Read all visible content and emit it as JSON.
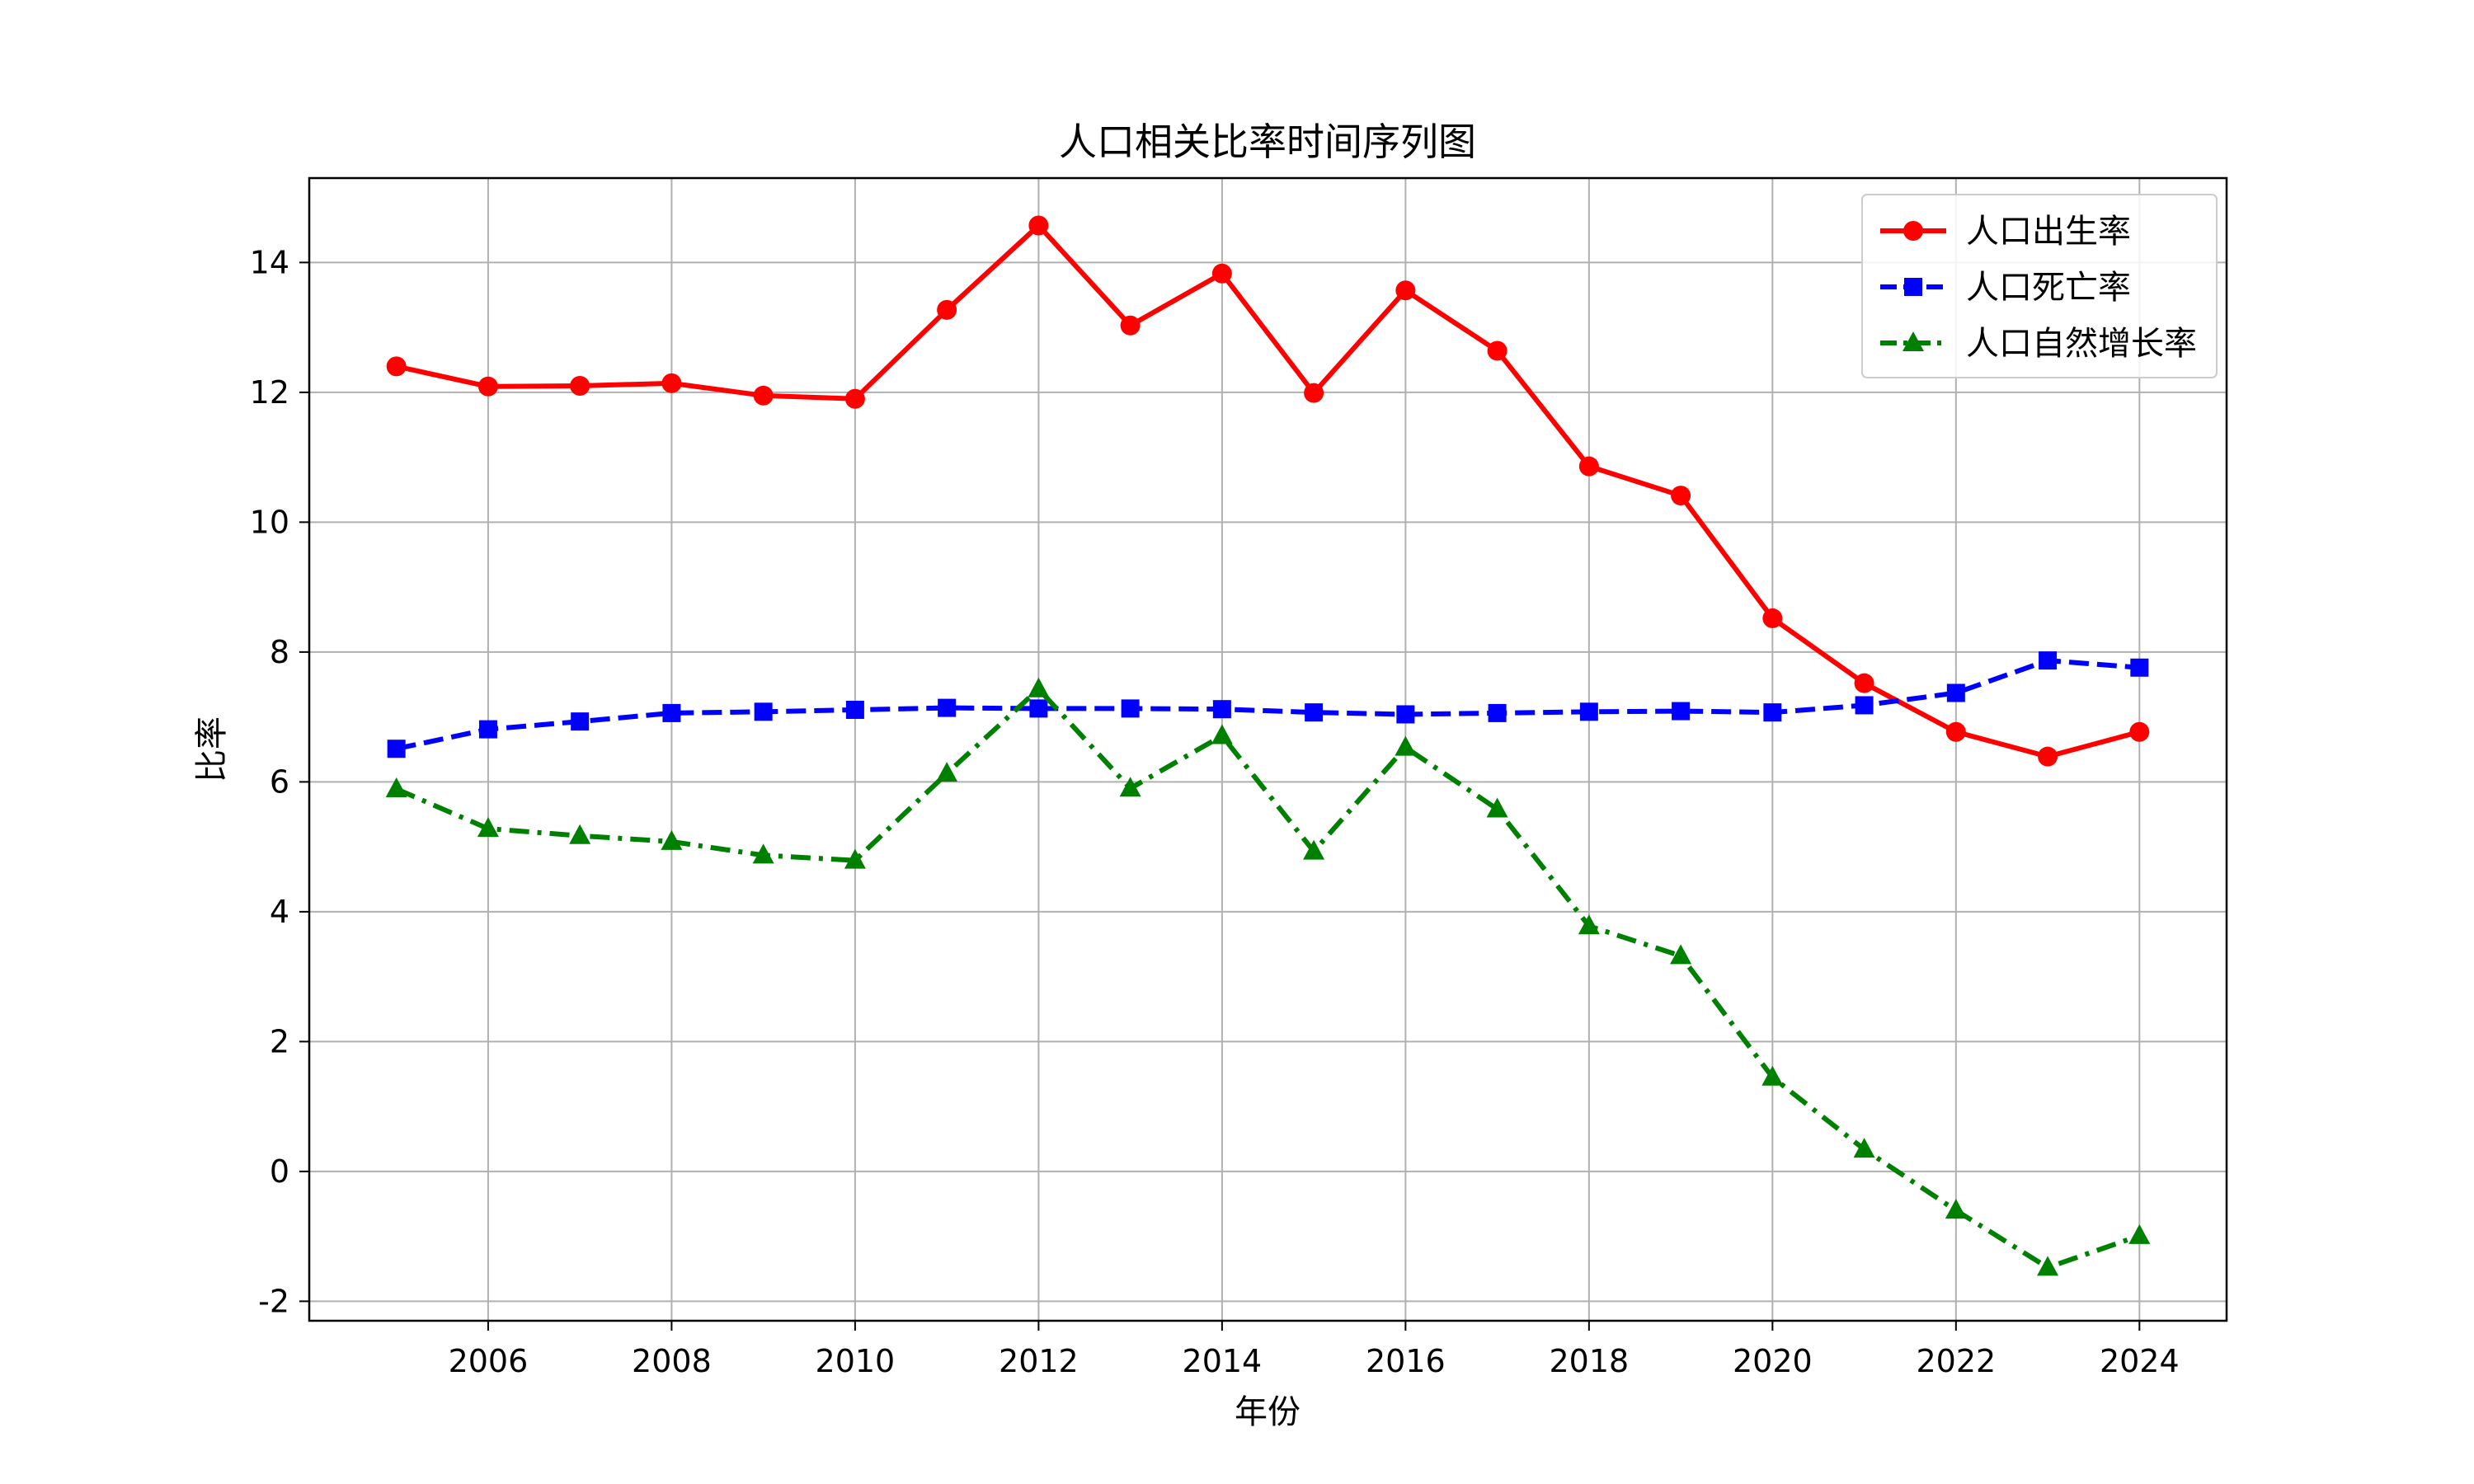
{
  "chart_data": {
    "type": "line",
    "title": "人口相关比率时间序列图",
    "xlabel": "年份",
    "ylabel": "比率",
    "x": [
      2005,
      2006,
      2007,
      2008,
      2009,
      2010,
      2011,
      2012,
      2013,
      2014,
      2015,
      2016,
      2017,
      2018,
      2019,
      2020,
      2021,
      2022,
      2023,
      2024
    ],
    "xlim": [
      2004.05,
      2024.95
    ],
    "ylim": [
      -2.3,
      15.3
    ],
    "xticks": [
      2006,
      2008,
      2010,
      2012,
      2014,
      2016,
      2018,
      2020,
      2022,
      2024
    ],
    "yticks": [
      -2,
      0,
      2,
      4,
      6,
      8,
      10,
      12,
      14
    ],
    "grid": true,
    "legend_position": "top-right",
    "series": [
      {
        "name": "人口出生率",
        "color": "#ff0000",
        "line_style": "solid",
        "marker": "circle",
        "values": [
          12.4,
          12.09,
          12.1,
          12.14,
          11.95,
          11.9,
          13.27,
          14.57,
          13.03,
          13.83,
          11.99,
          13.57,
          12.64,
          10.86,
          10.41,
          8.52,
          7.52,
          6.77,
          6.39,
          6.77
        ]
      },
      {
        "name": "人口死亡率",
        "color": "#0000ff",
        "line_style": "dashed",
        "marker": "square",
        "values": [
          6.51,
          6.81,
          6.93,
          7.06,
          7.08,
          7.11,
          7.14,
          7.13,
          7.13,
          7.12,
          7.07,
          7.04,
          7.06,
          7.08,
          7.09,
          7.07,
          7.18,
          7.37,
          7.87,
          7.76
        ]
      },
      {
        "name": "人口自然增长率",
        "color": "#008000",
        "line_style": "dashdot",
        "marker": "triangle",
        "values": [
          5.89,
          5.28,
          5.17,
          5.08,
          4.87,
          4.79,
          6.13,
          7.43,
          5.9,
          6.71,
          4.93,
          6.53,
          5.58,
          3.78,
          3.32,
          1.45,
          0.34,
          -0.6,
          -1.48,
          -0.99
        ]
      }
    ]
  }
}
